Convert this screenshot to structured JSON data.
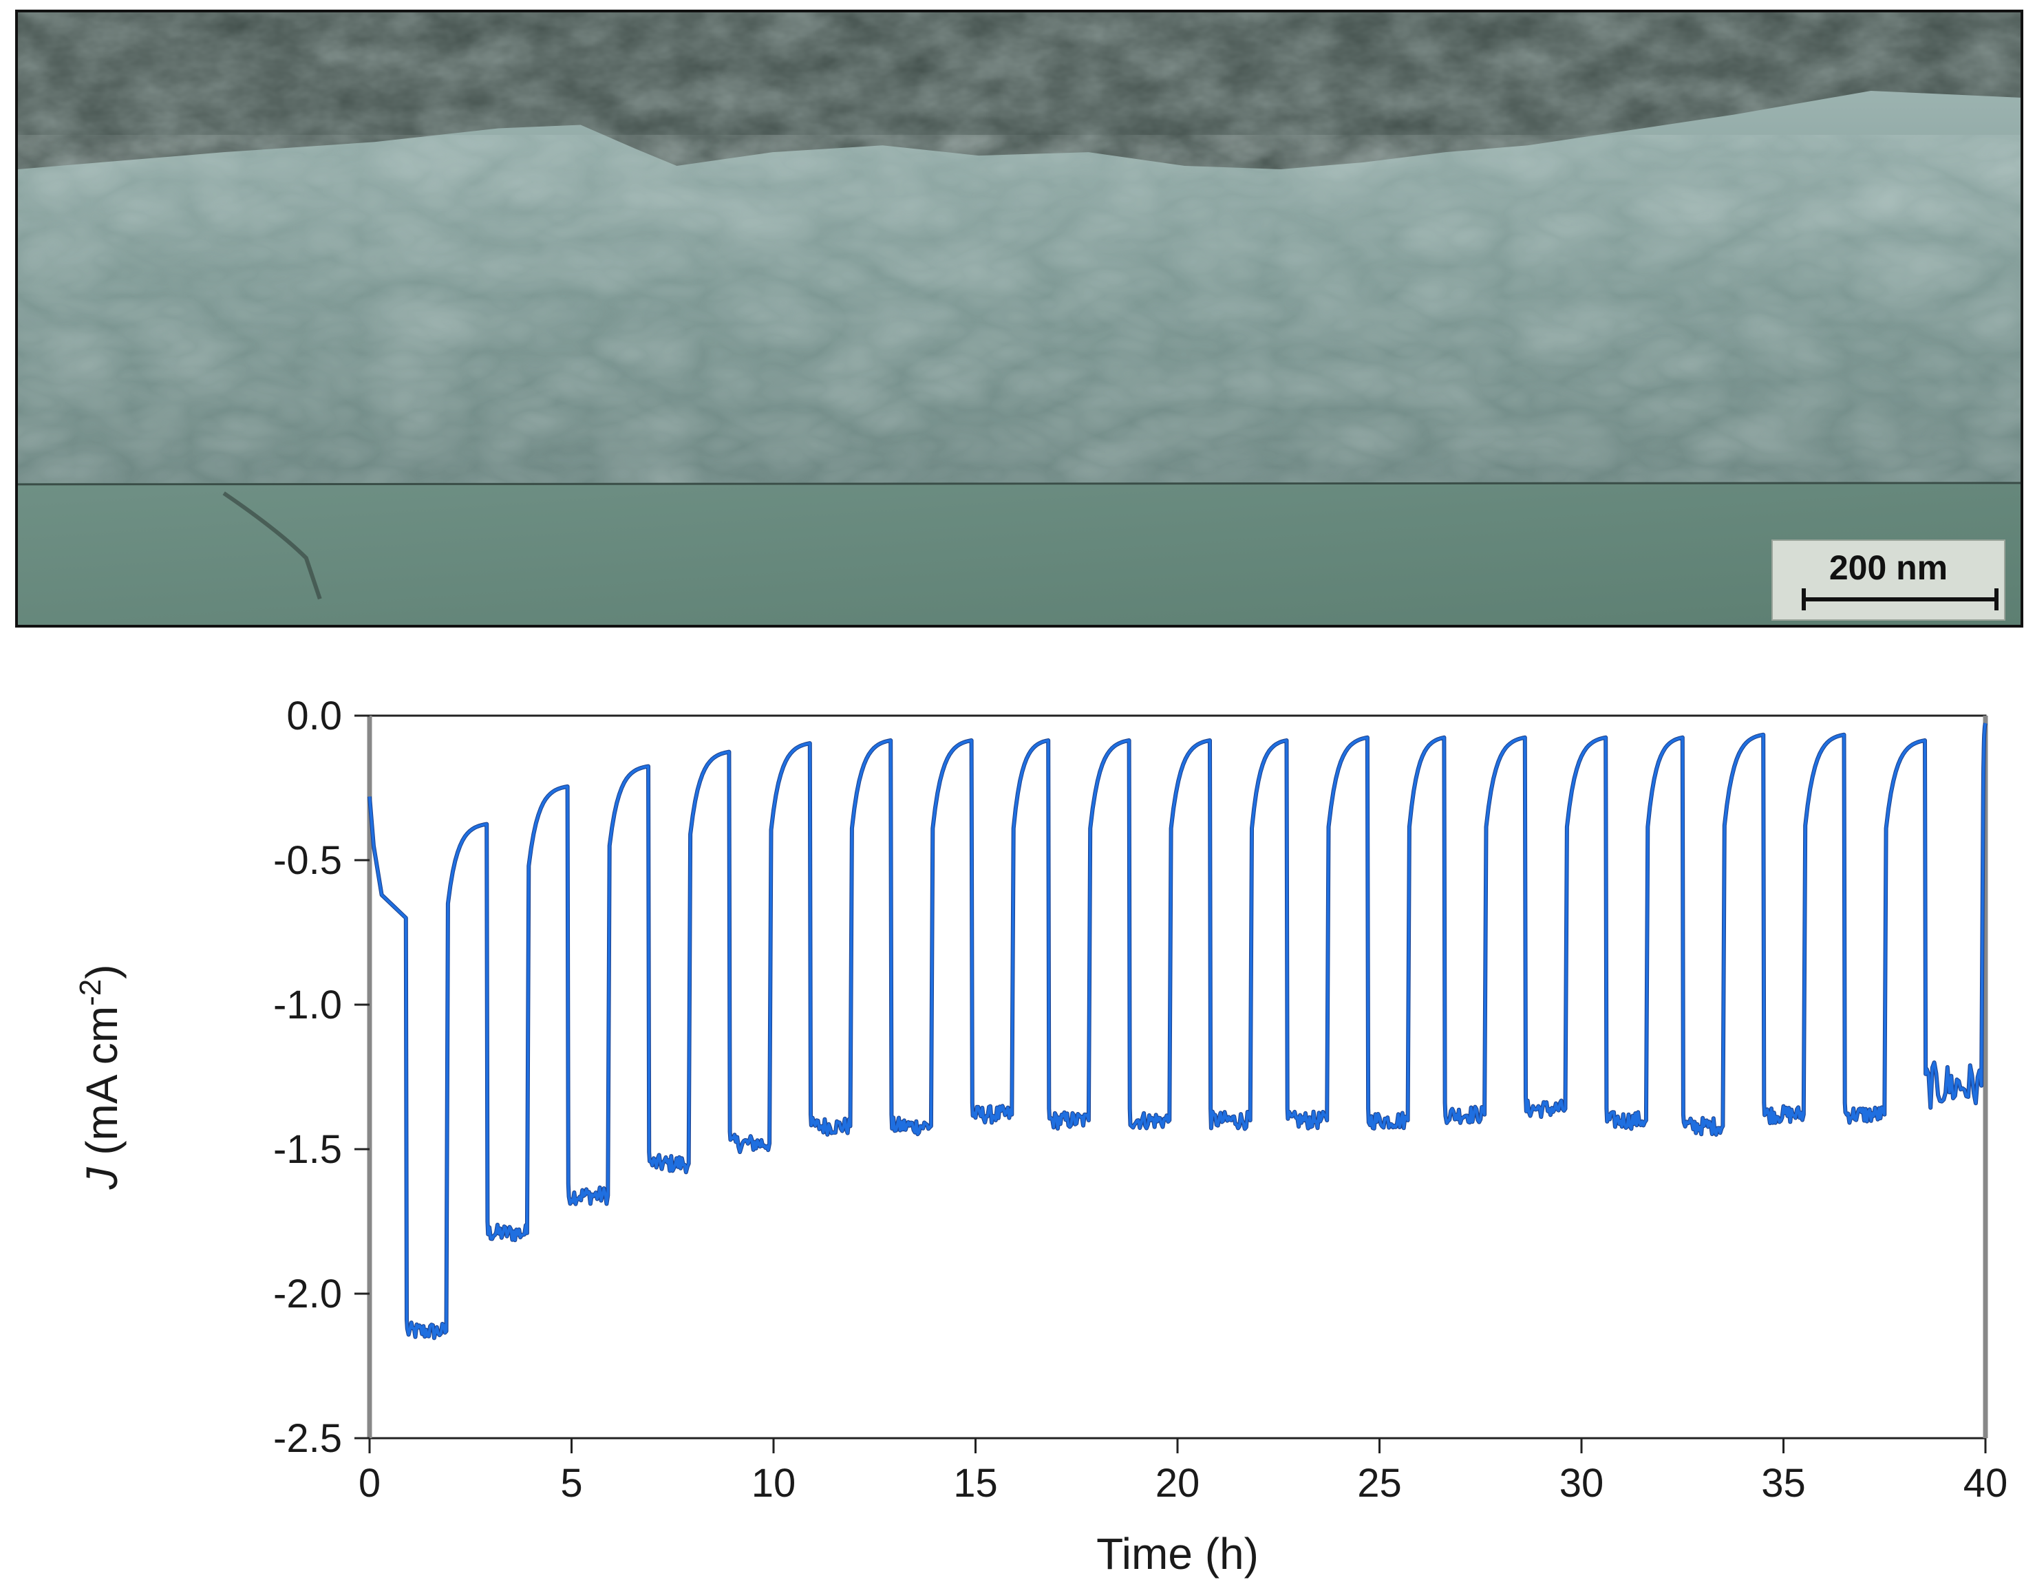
{
  "figure": {
    "sem_image": {
      "scale_bar_label": "200 nm"
    }
  },
  "chart_data": {
    "type": "line",
    "xlabel": "Time (h)",
    "ylabel": "J (mA cm^-2)",
    "ylabel_parts": {
      "symbol": "J",
      "unit": " (mA cm",
      "exponent": "-2",
      "close": ")"
    },
    "xlim": [
      0,
      40
    ],
    "ylim": [
      -2.5,
      0.0
    ],
    "xticks": [
      "0",
      "5",
      "10",
      "15",
      "20",
      "25",
      "30",
      "35",
      "40"
    ],
    "xtick_values": [
      0,
      5,
      10,
      15,
      20,
      25,
      30,
      35,
      40
    ],
    "yticks": [
      "0.0",
      "-0.5",
      "-1.0",
      "-1.5",
      "-2.0",
      "-2.5"
    ],
    "ytick_values": [
      0.0,
      -0.5,
      -1.0,
      -1.5,
      -2.0,
      -2.5
    ],
    "grid": false,
    "legend": "none",
    "line_color": "#1f6fe0",
    "series": [
      {
        "description": "chopped-light chronoamperometry: light-on periods (~-1.3 to -2.2) alternating with dark periods (~-0.1 to -0.7)",
        "cycles": [
          {
            "on_start": 0.9,
            "on_end": 1.9,
            "light_level": -2.13,
            "dark_end_level": -0.37
          },
          {
            "on_start": 2.9,
            "on_end": 3.9,
            "light_level": -1.79,
            "dark_end_level": -0.24
          },
          {
            "on_start": 4.9,
            "on_end": 5.9,
            "light_level": -1.66,
            "dark_end_level": -0.17
          },
          {
            "on_start": 6.9,
            "on_end": 7.9,
            "light_level": -1.55,
            "dark_end_level": -0.12
          },
          {
            "on_start": 8.9,
            "on_end": 9.9,
            "light_level": -1.48,
            "dark_end_level": -0.09
          },
          {
            "on_start": 10.9,
            "on_end": 11.9,
            "light_level": -1.42,
            "dark_end_level": -0.08
          },
          {
            "on_start": 12.9,
            "on_end": 13.9,
            "light_level": -1.42,
            "dark_end_level": -0.08
          },
          {
            "on_start": 14.9,
            "on_end": 15.9,
            "light_level": -1.38,
            "dark_end_level": -0.08
          },
          {
            "on_start": 16.8,
            "on_end": 17.8,
            "light_level": -1.4,
            "dark_end_level": -0.08
          },
          {
            "on_start": 18.8,
            "on_end": 19.8,
            "light_level": -1.4,
            "dark_end_level": -0.08
          },
          {
            "on_start": 20.8,
            "on_end": 21.8,
            "light_level": -1.4,
            "dark_end_level": -0.08
          },
          {
            "on_start": 22.7,
            "on_end": 23.7,
            "light_level": -1.4,
            "dark_end_level": -0.07
          },
          {
            "on_start": 24.7,
            "on_end": 25.7,
            "light_level": -1.4,
            "dark_end_level": -0.07
          },
          {
            "on_start": 26.6,
            "on_end": 27.6,
            "light_level": -1.38,
            "dark_end_level": -0.07
          },
          {
            "on_start": 28.6,
            "on_end": 29.6,
            "light_level": -1.36,
            "dark_end_level": -0.07
          },
          {
            "on_start": 30.6,
            "on_end": 31.6,
            "light_level": -1.4,
            "dark_end_level": -0.07
          },
          {
            "on_start": 32.5,
            "on_end": 33.5,
            "light_level": -1.42,
            "dark_end_level": -0.06
          },
          {
            "on_start": 34.5,
            "on_end": 35.5,
            "light_level": -1.38,
            "dark_end_level": -0.06
          },
          {
            "on_start": 36.5,
            "on_end": 37.5,
            "light_level": -1.38,
            "dark_end_level": -0.08
          },
          {
            "on_start": 38.5,
            "on_end": 39.9,
            "light_level": -1.28,
            "dark_end_level": -0.02
          }
        ],
        "initial_points": [
          [
            0.0,
            -0.28
          ],
          [
            0.1,
            -0.45
          ],
          [
            0.3,
            -0.62
          ],
          [
            0.6,
            -0.66
          ],
          [
            0.9,
            -0.7
          ]
        ]
      }
    ]
  }
}
